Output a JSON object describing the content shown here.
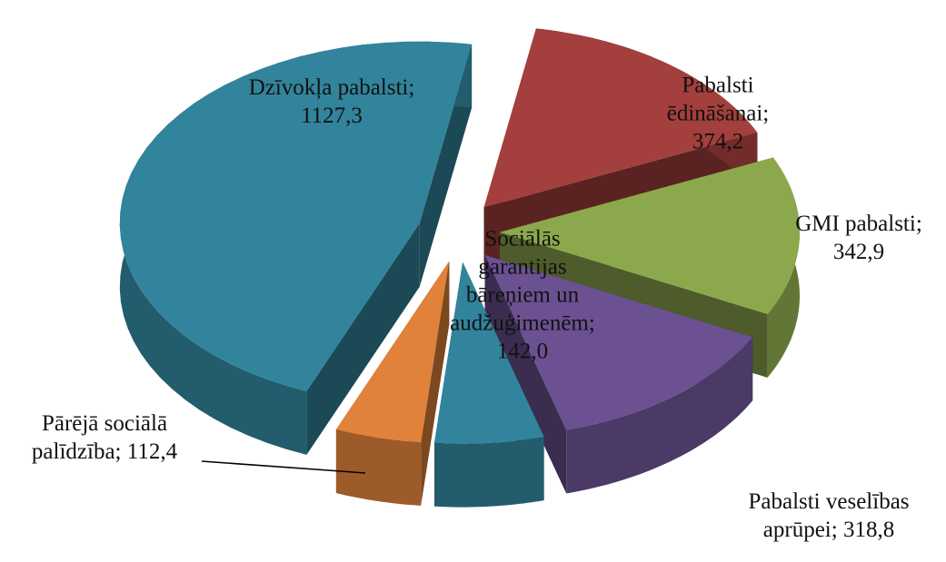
{
  "chart_data": {
    "type": "pie3d",
    "values": [
      374.2,
      342.9,
      318.8,
      142.0,
      112.4,
      1127.3
    ],
    "value_labels": [
      "Pabalsti ēdināšanai; 374,2",
      "GMI pabalsti; 342,9",
      "Pabalsti veselības aprūpei; 318,8",
      "Sociālās garantijas bāreņiem un audžuģimenēm; 142,0",
      "Pārējā sociālā palīdzība; 112,4",
      "Dzīvokļa pabalsti; 1127,3"
    ],
    "colors": [
      "#a33f3c",
      "#8ca84c",
      "#6b5191",
      "#31849b",
      "#e0823a",
      "#31849b"
    ]
  }
}
